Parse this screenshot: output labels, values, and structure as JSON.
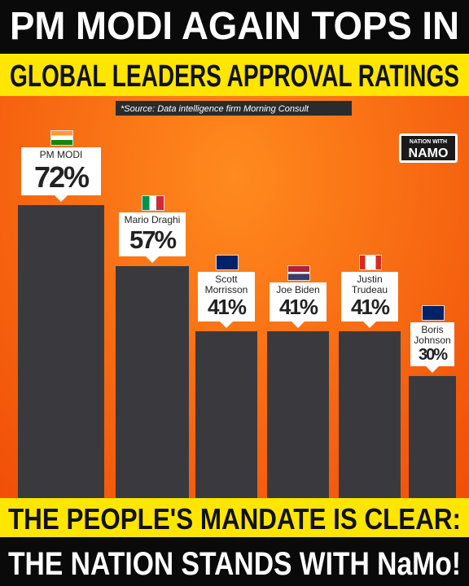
{
  "header": {
    "line1": "PM MODI AGAIN TOPS IN",
    "line2": "GLOBAL LEADERS APPROVAL RATINGS",
    "source": "*Source: Data intelligence firm Morning Consult"
  },
  "logo": {
    "top": "NATION WITH",
    "main": "NAMO"
  },
  "chart_data": {
    "type": "bar",
    "categories": [
      "PM MODI",
      "Mario Draghi",
      "Scott Morrisson",
      "Joe Biden",
      "Justin Trudeau",
      "Boris Johnson"
    ],
    "values": [
      72,
      57,
      41,
      41,
      41,
      30
    ],
    "value_labels": [
      "72%",
      "57%",
      "41%",
      "41%",
      "41%",
      "30%"
    ],
    "color": "#3a3a3e",
    "ylim": [
      0,
      100
    ]
  },
  "footer": {
    "line1": "THE PEOPLE'S MANDATE IS CLEAR:",
    "line2": "THE NATION STANDS WITH NaMo!"
  }
}
